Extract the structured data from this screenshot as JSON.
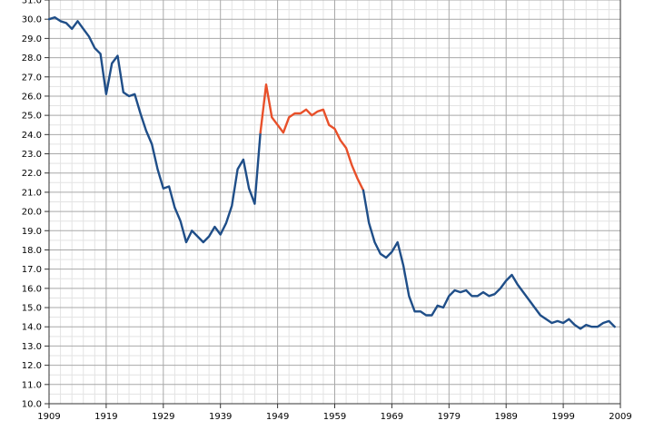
{
  "chart_data": {
    "type": "line",
    "title": "",
    "xlabel": "",
    "ylabel": "",
    "xlim": [
      1909,
      2009
    ],
    "ylim": [
      10.0,
      31.0
    ],
    "grid": true,
    "x_ticks": [
      "1909",
      "1919",
      "1929",
      "1939",
      "1949",
      "1959",
      "1969",
      "1979",
      "1989",
      "1999",
      "2009"
    ],
    "y_ticks": [
      "10.0",
      "11.0",
      "12.0",
      "13.0",
      "14.0",
      "15.0",
      "16.0",
      "17.0",
      "18.0",
      "19.0",
      "20.0",
      "21.0",
      "22.0",
      "23.0",
      "24.0",
      "25.0",
      "26.0",
      "27.0",
      "28.0",
      "29.0",
      "30.0",
      "31.0"
    ],
    "series": [
      {
        "color": "#1f4e88",
        "points": [
          [
            1909,
            30.0
          ],
          [
            1910,
            30.1
          ],
          [
            1911,
            29.9
          ],
          [
            1912,
            29.8
          ],
          [
            1913,
            29.5
          ],
          [
            1914,
            29.9
          ],
          [
            1915,
            29.5
          ],
          [
            1916,
            29.1
          ],
          [
            1917,
            28.5
          ],
          [
            1918,
            28.2
          ],
          [
            1919,
            26.1
          ],
          [
            1920,
            27.7
          ],
          [
            1921,
            28.1
          ],
          [
            1922,
            26.2
          ],
          [
            1923,
            26.0
          ],
          [
            1924,
            26.1
          ],
          [
            1925,
            25.1
          ],
          [
            1926,
            24.2
          ],
          [
            1927,
            23.5
          ],
          [
            1928,
            22.2
          ],
          [
            1929,
            21.2
          ],
          [
            1930,
            21.3
          ],
          [
            1931,
            20.2
          ],
          [
            1932,
            19.5
          ],
          [
            1933,
            18.4
          ],
          [
            1934,
            19.0
          ],
          [
            1935,
            18.7
          ],
          [
            1936,
            18.4
          ],
          [
            1937,
            18.7
          ],
          [
            1938,
            19.2
          ],
          [
            1939,
            18.8
          ],
          [
            1940,
            19.4
          ],
          [
            1941,
            20.3
          ],
          [
            1942,
            22.2
          ],
          [
            1943,
            22.7
          ],
          [
            1944,
            21.2
          ],
          [
            1945,
            20.4
          ],
          [
            1946,
            24.1
          ]
        ]
      },
      {
        "color": "#e8502a",
        "points": [
          [
            1946,
            24.1
          ],
          [
            1947,
            26.6
          ],
          [
            1948,
            24.9
          ],
          [
            1949,
            24.5
          ],
          [
            1950,
            24.1
          ],
          [
            1951,
            24.9
          ],
          [
            1952,
            25.1
          ],
          [
            1953,
            25.1
          ],
          [
            1954,
            25.3
          ],
          [
            1955,
            25.0
          ],
          [
            1956,
            25.2
          ],
          [
            1957,
            25.3
          ],
          [
            1958,
            24.5
          ],
          [
            1959,
            24.3
          ],
          [
            1960,
            23.7
          ],
          [
            1961,
            23.3
          ],
          [
            1962,
            22.4
          ],
          [
            1963,
            21.7
          ],
          [
            1964,
            21.1
          ]
        ]
      },
      {
        "color": "#1f4e88",
        "points": [
          [
            1964,
            21.1
          ],
          [
            1965,
            19.4
          ],
          [
            1966,
            18.4
          ],
          [
            1967,
            17.8
          ],
          [
            1968,
            17.6
          ],
          [
            1969,
            17.9
          ],
          [
            1970,
            18.4
          ],
          [
            1971,
            17.2
          ],
          [
            1972,
            15.6
          ],
          [
            1973,
            14.8
          ],
          [
            1974,
            14.8
          ],
          [
            1975,
            14.6
          ],
          [
            1976,
            14.6
          ],
          [
            1977,
            15.1
          ],
          [
            1978,
            15.0
          ],
          [
            1979,
            15.6
          ],
          [
            1980,
            15.9
          ],
          [
            1981,
            15.8
          ],
          [
            1982,
            15.9
          ],
          [
            1983,
            15.6
          ],
          [
            1984,
            15.6
          ],
          [
            1985,
            15.8
          ],
          [
            1986,
            15.6
          ],
          [
            1987,
            15.7
          ],
          [
            1988,
            16.0
          ],
          [
            1989,
            16.4
          ],
          [
            1990,
            16.7
          ],
          [
            1991,
            16.2
          ],
          [
            1992,
            15.8
          ],
          [
            1993,
            15.4
          ],
          [
            1994,
            15.0
          ],
          [
            1995,
            14.6
          ],
          [
            1996,
            14.4
          ],
          [
            1997,
            14.2
          ],
          [
            1998,
            14.3
          ],
          [
            1999,
            14.2
          ],
          [
            2000,
            14.4
          ],
          [
            2001,
            14.1
          ],
          [
            2002,
            13.9
          ],
          [
            2003,
            14.1
          ],
          [
            2004,
            14.0
          ],
          [
            2005,
            14.0
          ],
          [
            2006,
            14.2
          ],
          [
            2007,
            14.3
          ],
          [
            2008,
            14.0
          ]
        ]
      }
    ]
  }
}
